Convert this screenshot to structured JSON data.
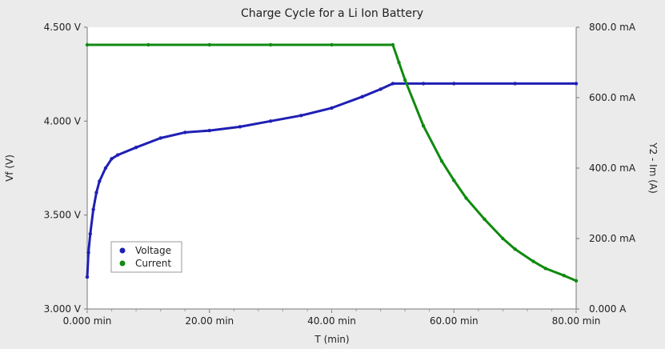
{
  "chart_data": {
    "type": "line",
    "title": "Charge Cycle for a Li Ion Battery",
    "xlabel": "T (min)",
    "ylabel_left": "Vf (V)",
    "ylabel_right": "Y2 - Im (A)",
    "xlim": [
      0,
      80
    ],
    "ylim_left": [
      3.0,
      4.5
    ],
    "ylim_right": [
      0,
      800
    ],
    "x_ticks": [
      {
        "value": 0,
        "label": "0.000 min"
      },
      {
        "value": 20,
        "label": "20.00 min"
      },
      {
        "value": 40,
        "label": "40.00 min"
      },
      {
        "value": 60,
        "label": "60.00 min"
      },
      {
        "value": 80,
        "label": "80.00 min"
      }
    ],
    "y_left_ticks": [
      {
        "value": 3.0,
        "label": "3.000 V"
      },
      {
        "value": 3.5,
        "label": "3.500 V"
      },
      {
        "value": 4.0,
        "label": "4.000 V"
      },
      {
        "value": 4.5,
        "label": "4.500 V"
      }
    ],
    "y_right_ticks": [
      {
        "value": 0,
        "label": "0.000 A"
      },
      {
        "value": 200,
        "label": "200.0 mA"
      },
      {
        "value": 400,
        "label": "400.0 mA"
      },
      {
        "value": 600,
        "label": "600.0 mA"
      },
      {
        "value": 800,
        "label": "800.0 mA"
      }
    ],
    "legend_position": "bottom-left",
    "grid": false,
    "series": [
      {
        "name": "Voltage",
        "axis": "left",
        "color": "#1f1fb4",
        "points": [
          [
            0.0,
            3.17
          ],
          [
            0.2,
            3.3
          ],
          [
            0.5,
            3.4
          ],
          [
            1.0,
            3.53
          ],
          [
            1.5,
            3.62
          ],
          [
            2.0,
            3.68
          ],
          [
            3.0,
            3.75
          ],
          [
            4.0,
            3.8
          ],
          [
            5.0,
            3.82
          ],
          [
            8.0,
            3.86
          ],
          [
            12.0,
            3.91
          ],
          [
            16.0,
            3.94
          ],
          [
            20.0,
            3.95
          ],
          [
            25.0,
            3.97
          ],
          [
            30.0,
            4.0
          ],
          [
            35.0,
            4.03
          ],
          [
            40.0,
            4.07
          ],
          [
            45.0,
            4.13
          ],
          [
            48.0,
            4.17
          ],
          [
            50.0,
            4.2
          ],
          [
            55.0,
            4.2
          ],
          [
            60.0,
            4.2
          ],
          [
            70.0,
            4.2
          ],
          [
            80.0,
            4.2
          ]
        ]
      },
      {
        "name": "Current",
        "axis": "right",
        "color": "#108a10",
        "points": [
          [
            0.0,
            750
          ],
          [
            10.0,
            750
          ],
          [
            20.0,
            750
          ],
          [
            30.0,
            750
          ],
          [
            40.0,
            750
          ],
          [
            50.0,
            750
          ],
          [
            51.0,
            700
          ],
          [
            52.0,
            650
          ],
          [
            55.0,
            520
          ],
          [
            58.0,
            420
          ],
          [
            60.0,
            365
          ],
          [
            62.0,
            315
          ],
          [
            65.0,
            255
          ],
          [
            68.0,
            200
          ],
          [
            70.0,
            170
          ],
          [
            73.0,
            135
          ],
          [
            75.0,
            115
          ],
          [
            78.0,
            95
          ],
          [
            80.0,
            80
          ]
        ]
      }
    ]
  }
}
